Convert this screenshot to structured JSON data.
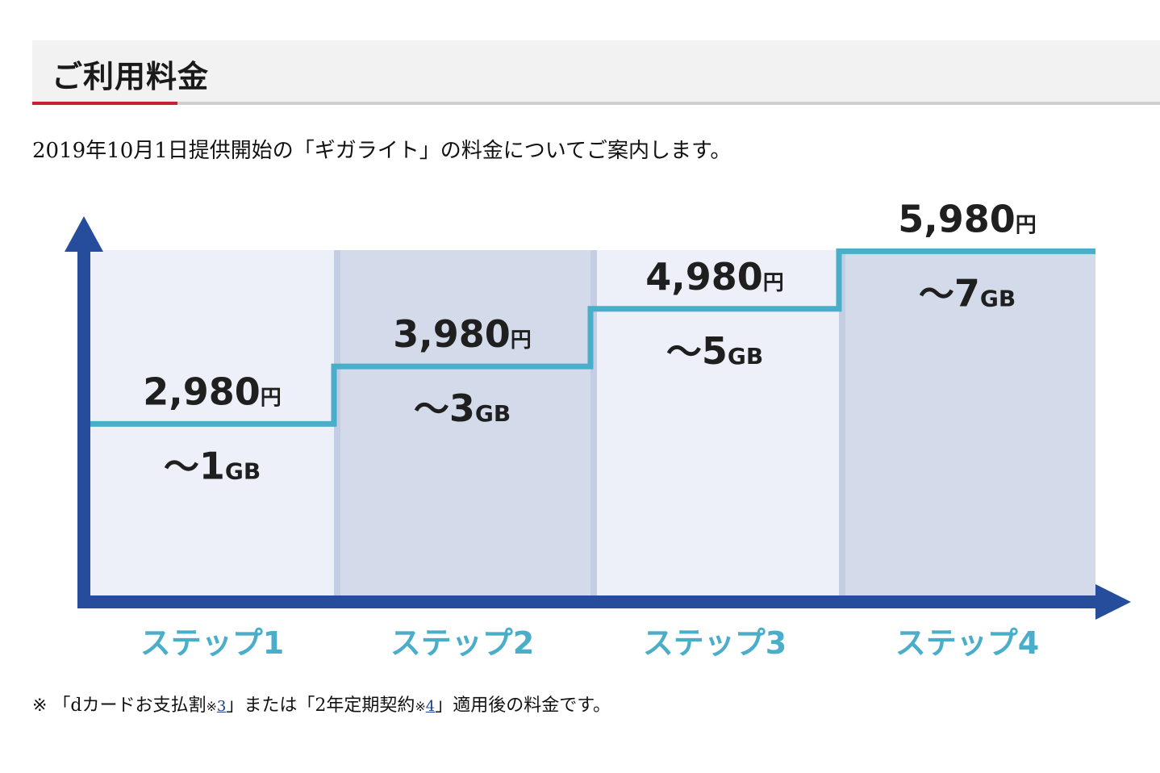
{
  "header": {
    "title": "ご利用料金"
  },
  "intro_text": "2019年10月1日提供開始の「ギガライト」の料金についてご案内します。",
  "chart_data": {
    "type": "bar",
    "categories": [
      "ステップ1",
      "ステップ2",
      "ステップ3",
      "ステップ4"
    ],
    "price_numbers": [
      "2,980",
      "3,980",
      "4,980",
      "5,980"
    ],
    "price_unit": "円",
    "values": [
      2980,
      3980,
      4980,
      5980
    ],
    "data_caps": [
      "1",
      "3",
      "5",
      "7"
    ],
    "data_prefix": "〜",
    "data_unit": "GB",
    "title": "",
    "xlabel": "",
    "ylabel": "",
    "ylim": [
      0,
      6000
    ],
    "grid": false,
    "colors": {
      "axis": "#264d9b",
      "step_line": "#4aadc9",
      "panel_light": "#edf0f8",
      "panel_dark": "#d3dbea",
      "panel_divider": "#c4cee2",
      "category_label": "#4aadc9",
      "value_label": "#1f1f1f"
    }
  },
  "footnote": {
    "prefix": "※ 「dカードお支払割",
    "mark1": "※",
    "ref1": "3",
    "middle": "」または「2年定期契約",
    "mark2": "※",
    "ref2": "4",
    "suffix": "」適用後の料金です。"
  },
  "colors": {
    "header_bg": "#f2f2f2",
    "header_accent": "#c8202f",
    "header_underline": "#cfcfcf"
  }
}
